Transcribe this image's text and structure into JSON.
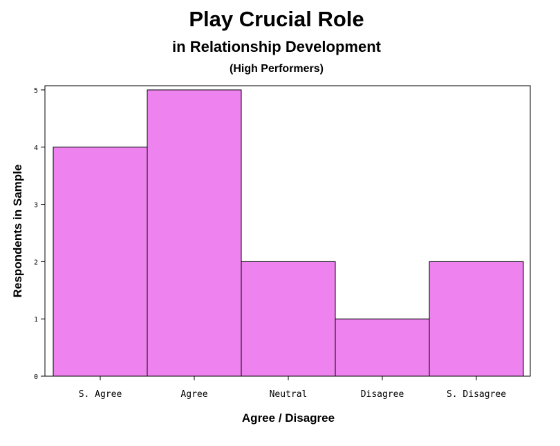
{
  "chart_data": {
    "type": "bar",
    "title": "Play Crucial Role",
    "subtitle": "in Relationship Development",
    "subtitle2": "(High Performers)",
    "xlabel": "Agree / Disagree",
    "ylabel": "Respondents in Sample",
    "categories": [
      "S. Agree",
      "Agree",
      "Neutral",
      "Disagree",
      "S. Disagree"
    ],
    "values": [
      4,
      5,
      2,
      1,
      2
    ],
    "ylim": [
      0,
      5
    ],
    "yticks": [
      "0",
      "1",
      "2",
      "3",
      "4",
      "5"
    ],
    "bar_color": "#ee82ee",
    "grid": false
  }
}
